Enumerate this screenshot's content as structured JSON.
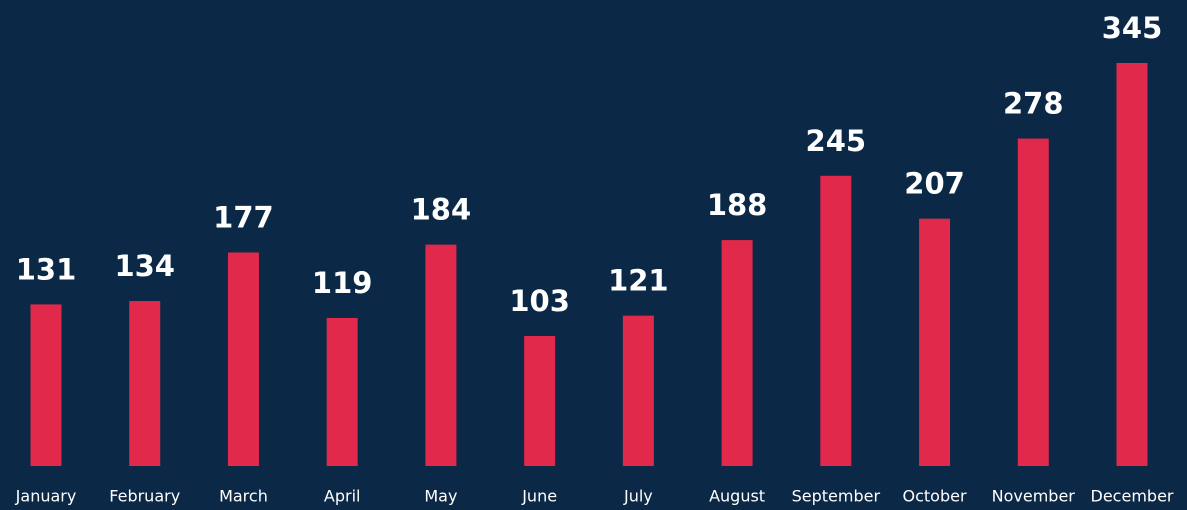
{
  "chart_data": {
    "type": "bar",
    "categories": [
      "January",
      "February",
      "March",
      "April",
      "May",
      "June",
      "July",
      "August",
      "September",
      "October",
      "November",
      "December"
    ],
    "values": [
      131,
      134,
      177,
      119,
      184,
      103,
      121,
      188,
      245,
      207,
      278,
      345
    ],
    "color": "#e0294b"
  }
}
